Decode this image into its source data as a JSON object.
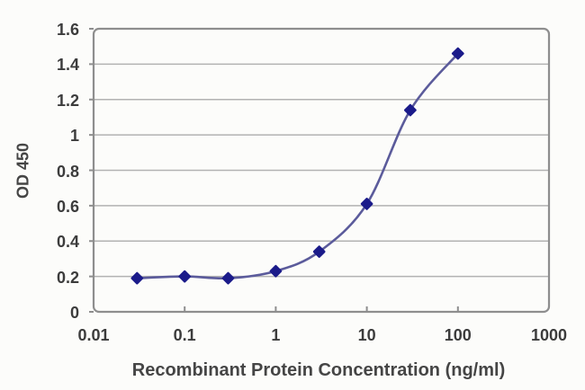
{
  "chart_data": {
    "type": "line",
    "title": "",
    "xlabel": "Recombinant Protein Concentration (ng/ml)",
    "ylabel": "OD 450",
    "x_scale": "log",
    "xlim": [
      0.01,
      1000
    ],
    "ylim": [
      0,
      1.6
    ],
    "x_ticks": [
      0.01,
      0.1,
      1,
      10,
      100,
      1000
    ],
    "x_tick_labels": [
      "0.01",
      "0.1",
      "1",
      "10",
      "100",
      "1000"
    ],
    "y_ticks": [
      0,
      0.2,
      0.4,
      0.6,
      0.8,
      1.0,
      1.2,
      1.4,
      1.6
    ],
    "y_tick_labels": [
      "0",
      "0.2",
      "0.4",
      "0.6",
      "0.8",
      "1",
      "1.2",
      "1.4",
      "1.6"
    ],
    "grid": "horizontal",
    "legend": null,
    "series": [
      {
        "name": "OD450",
        "marker": "diamond",
        "line_style": "smooth",
        "x": [
          0.03,
          0.1,
          0.3,
          1,
          3,
          10,
          30,
          100
        ],
        "y": [
          0.19,
          0.2,
          0.19,
          0.23,
          0.34,
          0.61,
          1.14,
          1.46
        ]
      }
    ],
    "colors": {
      "line": "#5b5b9b",
      "marker": "#1b1b8a",
      "grid": "#b2b2b2",
      "axis": "#8e8e8e",
      "tick_text": "#3c3c3c",
      "title_text": "#454545",
      "background": "#fcfcfa"
    }
  }
}
